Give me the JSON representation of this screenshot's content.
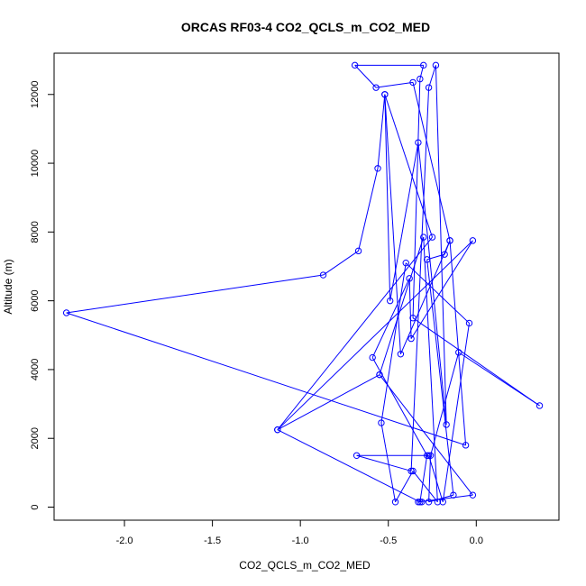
{
  "chart_data": {
    "type": "line",
    "title": "ORCAS RF03-4 CO2_QCLS_m_CO2_MED",
    "xlabel": "CO2_QCLS_m_CO2_MED",
    "ylabel": "Altitude (m)",
    "xlim": [
      -2.4,
      0.47
    ],
    "ylim": [
      -380,
      13200
    ],
    "x_ticks": [
      -2.0,
      -1.5,
      -1.0,
      -0.5,
      0.0
    ],
    "x_tick_labels": [
      "-2.0",
      "-1.5",
      "-1.0",
      "-0.5",
      "0.0"
    ],
    "y_ticks": [
      0,
      2000,
      4000,
      6000,
      8000,
      10000,
      12000
    ],
    "y_tick_labels": [
      "0",
      "2000",
      "4000",
      "6000",
      "8000",
      "10000",
      "12000"
    ],
    "grid": false,
    "series": [
      {
        "color": "#0000ff",
        "marker": "open-circle",
        "points": [
          [
            -0.31,
            150
          ],
          [
            -0.33,
            150
          ],
          [
            -0.02,
            350
          ],
          [
            -0.55,
            3850
          ],
          [
            -0.3,
            7850
          ],
          [
            -0.22,
            150
          ],
          [
            -0.36,
            1050
          ],
          [
            -0.46,
            150
          ],
          [
            -0.54,
            2450
          ],
          [
            -0.4,
            7100
          ],
          [
            -0.04,
            5350
          ],
          [
            -0.19,
            150
          ],
          [
            -0.27,
            1500
          ],
          [
            -0.68,
            1500
          ],
          [
            -0.37,
            1050
          ],
          [
            -0.27,
            12200
          ],
          [
            -0.23,
            12850
          ],
          [
            -0.17,
            2400
          ],
          [
            -0.33,
            10600
          ],
          [
            -0.49,
            6000
          ],
          [
            -0.52,
            12000
          ],
          [
            -0.43,
            4450
          ],
          [
            -0.15,
            7750
          ],
          [
            -0.18,
            7350
          ],
          [
            -0.28,
            7200
          ],
          [
            -0.13,
            350
          ],
          [
            -0.27,
            150
          ],
          [
            -0.26,
            1500
          ],
          [
            -0.1,
            4500
          ],
          [
            0.36,
            2950
          ],
          [
            -0.36,
            5500
          ],
          [
            -0.32,
            12450
          ],
          [
            -0.3,
            12850
          ],
          [
            -0.69,
            12850
          ],
          [
            -0.57,
            12200
          ],
          [
            -0.36,
            12350
          ],
          [
            -0.15,
            7750
          ],
          [
            -0.06,
            1800
          ],
          [
            -2.33,
            5650
          ],
          [
            -0.87,
            6750
          ],
          [
            -0.67,
            7450
          ],
          [
            -0.56,
            9850
          ],
          [
            -0.52,
            12000
          ],
          [
            -0.25,
            7850
          ],
          [
            -1.13,
            2250
          ],
          [
            -0.02,
            7750
          ],
          [
            -0.37,
            4900
          ],
          [
            -0.38,
            6650
          ],
          [
            -0.59,
            4350
          ],
          [
            -0.28,
            1500
          ],
          [
            -0.32,
            150
          ],
          [
            -1.13,
            2250
          ],
          [
            -0.55,
            3850
          ]
        ]
      }
    ]
  }
}
